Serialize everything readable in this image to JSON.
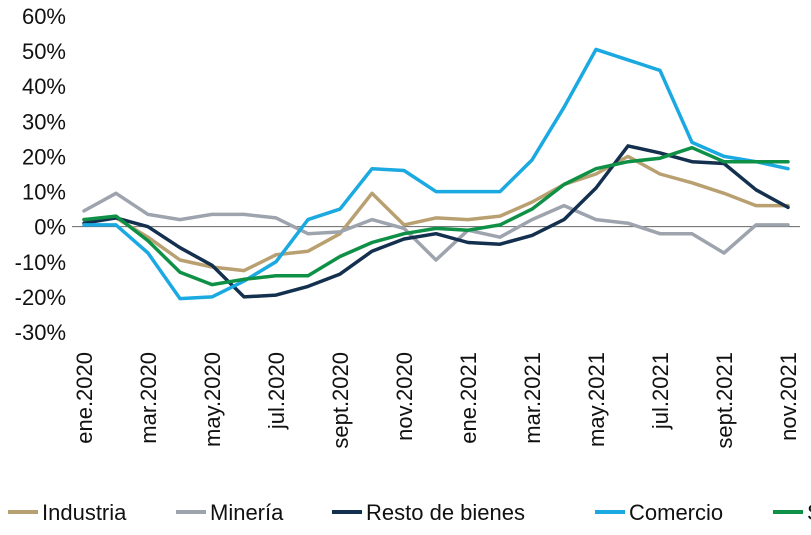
{
  "chart_data": {
    "type": "line",
    "title": "",
    "xlabel": "",
    "ylabel": "",
    "ylim": [
      -30,
      60
    ],
    "yticks": [
      "60%",
      "50%",
      "40%",
      "30%",
      "20%",
      "10%",
      "0%",
      "-10%",
      "-20%",
      "-30%"
    ],
    "ytick_values": [
      60,
      50,
      40,
      30,
      20,
      10,
      0,
      -10,
      -20,
      -30
    ],
    "x": [
      "ene.2020",
      "feb.2020",
      "mar.2020",
      "abr.2020",
      "may.2020",
      "jun.2020",
      "jul.2020",
      "ago.2020",
      "sept.2020",
      "oct.2020",
      "nov.2020",
      "dic.2020",
      "ene.2021",
      "feb.2021",
      "mar.2021",
      "abr.2021",
      "may.2021",
      "jun.2021",
      "jul.2021",
      "ago.2021",
      "sept.2021",
      "oct.2021",
      "nov.2021"
    ],
    "xtick_labels": [
      "ene.2020",
      "mar.2020",
      "may.2020",
      "jul.2020",
      "sept.2020",
      "nov.2020",
      "ene.2021",
      "mar.2021",
      "may.2021",
      "jul.2021",
      "sept.2021",
      "nov.2021"
    ],
    "xtick_indices": [
      0,
      2,
      4,
      6,
      8,
      10,
      12,
      14,
      16,
      18,
      20,
      22
    ],
    "grid": false,
    "legend_position": "bottom",
    "series": [
      {
        "name": "Industria",
        "color": "#b9a071",
        "values": [
          2,
          2.5,
          -3,
          -9.5,
          -11.5,
          -12.5,
          -8,
          -7,
          -2,
          9.5,
          0.5,
          2.5,
          2,
          3,
          7,
          12,
          15,
          20,
          15,
          12.5,
          9.5,
          6,
          6
        ]
      },
      {
        "name": "Minería",
        "color": "#9ea4ae",
        "values": [
          4.5,
          9.5,
          3.5,
          2,
          3.5,
          3.5,
          2.5,
          -2,
          -1.5,
          2,
          -0.5,
          -9.5,
          -1,
          -3,
          2,
          6,
          2,
          1,
          -2,
          -2,
          -7.5,
          0.5,
          0.5
        ]
      },
      {
        "name": "Resto de bienes",
        "color": "#14304f",
        "values": [
          1,
          2.5,
          0,
          -6,
          -11,
          -20,
          -19.5,
          -17,
          -13.5,
          -7,
          -3.5,
          -2,
          -4.5,
          -5,
          -2.5,
          2,
          11,
          23,
          21,
          18.5,
          18,
          10.5,
          5.5
        ]
      },
      {
        "name": "Comercio",
        "color": "#1aa9e1",
        "values": [
          0.5,
          0.5,
          -7.5,
          -20.5,
          -20,
          -15.5,
          -10,
          2,
          5,
          16.5,
          16,
          10,
          10,
          10,
          19,
          34,
          50.5,
          47.5,
          44.5,
          24,
          20,
          18.5,
          16.5
        ]
      },
      {
        "name": "Servicios",
        "color": "#0e9146",
        "values": [
          2,
          3,
          -4,
          -13,
          -16.5,
          -15,
          -14,
          -14,
          -8.5,
          -4.5,
          -2,
          -0.5,
          -1,
          0.5,
          5,
          12,
          16.5,
          18.5,
          19.5,
          22.5,
          18.5,
          18.5,
          18.5
        ]
      }
    ]
  }
}
